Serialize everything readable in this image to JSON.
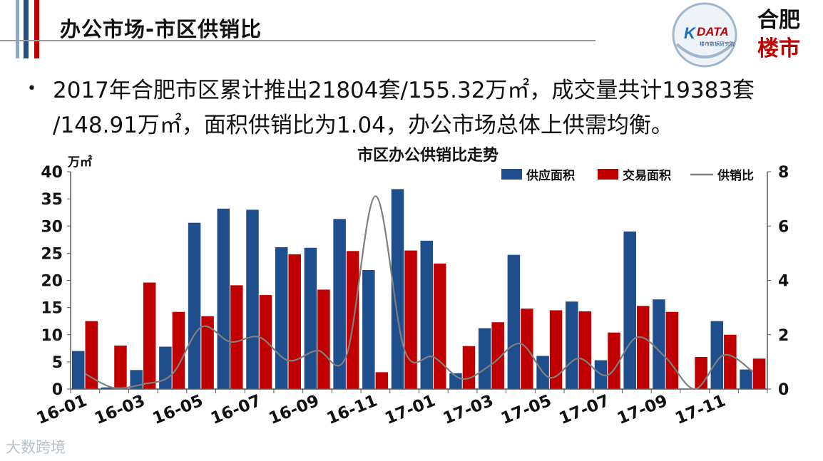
{
  "header": {
    "title": "办公市场-市区供销比",
    "logos": {
      "kdata_text": "DATA",
      "kdata_sub": "楼市数据研究院",
      "hefei_top": "合肥",
      "hefei_bottom": "楼市"
    }
  },
  "body": {
    "line1": "2017年合肥市区累计推出21804套/155.32万㎡，成交量共计19383套",
    "line2": "/148.91万㎡，面积供销比为1.04，办公市场总体上供需均衡。"
  },
  "watermark": "大数跨境",
  "colors": {
    "supply": "#1f4e8c",
    "deal": "#c00000",
    "ratio": "#7f7f7f"
  },
  "chart_data": {
    "type": "bar",
    "title": "市区办公供销比走势",
    "ylabel": "万㎡",
    "ylim": [
      0,
      40
    ],
    "y2lim": [
      0,
      8
    ],
    "yticks": [
      "0",
      "5",
      "10",
      "15",
      "20",
      "25",
      "30",
      "35",
      "40"
    ],
    "y2ticks": [
      "0",
      "2",
      "4",
      "6",
      "8"
    ],
    "grid": false,
    "legend_position": "top-right",
    "categories": [
      "16-01",
      "16-02",
      "16-03",
      "16-04",
      "16-05",
      "16-06",
      "16-07",
      "16-08",
      "16-09",
      "16-10",
      "16-11",
      "16-12",
      "17-01",
      "17-02",
      "17-03",
      "17-04",
      "17-05",
      "17-06",
      "17-07",
      "17-08",
      "17-09",
      "17-10",
      "17-11",
      "17-12"
    ],
    "xtick_labels": [
      "16-01",
      "16-03",
      "16-05",
      "16-07",
      "16-09",
      "16-11",
      "17-01",
      "17-03",
      "17-05",
      "17-07",
      "17-09",
      "17-11"
    ],
    "series": [
      {
        "name": "供应面积",
        "type": "bar",
        "axis": "left",
        "values": [
          7.0,
          0.3,
          3.5,
          7.8,
          30.6,
          33.2,
          33.0,
          26.1,
          26.0,
          31.3,
          21.9,
          36.8,
          27.3,
          2.9,
          11.2,
          24.7,
          6.1,
          16.1,
          5.3,
          29.0,
          16.5,
          0,
          12.5,
          3.6
        ]
      },
      {
        "name": "交易面积",
        "type": "bar",
        "axis": "left",
        "values": [
          12.5,
          8.0,
          19.6,
          14.2,
          13.4,
          19.1,
          17.3,
          24.8,
          18.3,
          25.4,
          3.1,
          25.5,
          23.1,
          7.9,
          12.3,
          14.8,
          14.5,
          14.3,
          10.4,
          15.3,
          14.2,
          5.9,
          10.0,
          5.6
        ]
      },
      {
        "name": "供销比",
        "type": "line",
        "axis": "right",
        "values": [
          0.56,
          0.04,
          0.18,
          0.55,
          2.28,
          1.74,
          1.91,
          1.05,
          1.42,
          1.23,
          7.1,
          1.44,
          1.18,
          0.37,
          0.91,
          1.67,
          0.42,
          1.13,
          0.51,
          1.9,
          1.16,
          0.0,
          1.25,
          0.64
        ]
      }
    ]
  }
}
